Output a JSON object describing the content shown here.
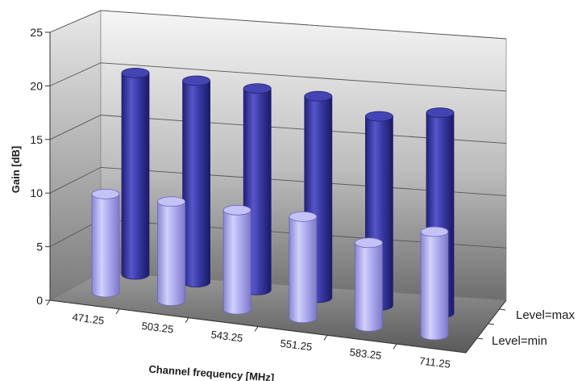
{
  "chart_data": {
    "type": "bar",
    "style": "3d-cylinder",
    "xlabel": "Channel frequency [MHz]",
    "ylabel": "Gain [dB]",
    "ylim": [
      0,
      25
    ],
    "yticks": [
      "0",
      "5",
      "10",
      "15",
      "20",
      "25"
    ],
    "categories": [
      "471.25",
      "503.25",
      "543.25",
      "551.25",
      "583.25",
      "711.25"
    ],
    "series": [
      {
        "name": "Level=max",
        "color": "#3a3aa6",
        "values": [
          19.5,
          19.5,
          19.5,
          19.5,
          18.3,
          19.4
        ]
      },
      {
        "name": "Level=min",
        "color": "#a9a6ee",
        "values": [
          9.5,
          9.6,
          9.6,
          9.8,
          8.1,
          10.0
        ]
      }
    ],
    "grid": true,
    "legend": "series labels on depth axis, right"
  }
}
